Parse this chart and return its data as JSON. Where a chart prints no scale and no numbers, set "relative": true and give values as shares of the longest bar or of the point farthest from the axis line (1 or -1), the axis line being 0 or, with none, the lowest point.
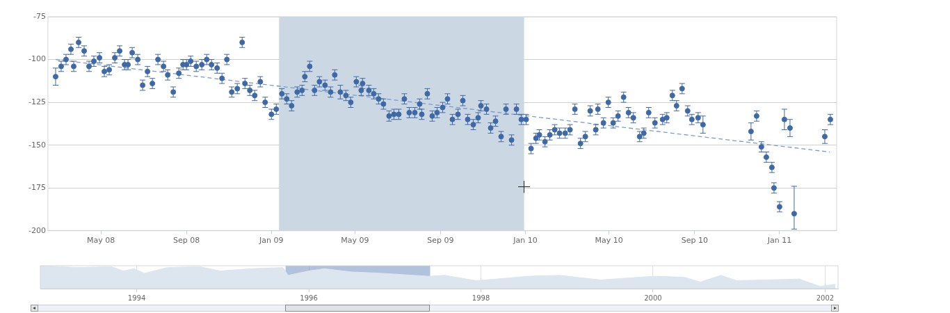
{
  "chart_data": [
    {
      "type": "scatter",
      "marker": "circle",
      "grid": "y",
      "xlim": [
        "2008-02-15",
        "2011-03-24"
      ],
      "xticks": [
        {
          "value": "2008-05-01",
          "label": "May 08"
        },
        {
          "value": "2008-09-01",
          "label": "Sep 08"
        },
        {
          "value": "2009-01-01",
          "label": "Jan 09"
        },
        {
          "value": "2009-05-01",
          "label": "May 09"
        },
        {
          "value": "2009-09-01",
          "label": "Sep 09"
        },
        {
          "value": "2010-01-01",
          "label": "Jan 10"
        },
        {
          "value": "2010-05-01",
          "label": "May 10"
        },
        {
          "value": "2010-09-01",
          "label": "Sep 10"
        },
        {
          "value": "2011-01-01",
          "label": "Jan 11"
        }
      ],
      "ylim": [
        -200,
        -75
      ],
      "yticks": [
        -200,
        -175,
        -150,
        -125,
        -100,
        -75
      ],
      "bands": [
        {
          "axis": "x",
          "from": "2009-01-12",
          "to": "2009-12-30",
          "color": "#cbd7e3"
        }
      ],
      "x": [
        "2008-02-26",
        "2008-03-05",
        "2008-03-12",
        "2008-03-19",
        "2008-03-23",
        "2008-03-30",
        "2008-04-07",
        "2008-04-14",
        "2008-04-21",
        "2008-04-29",
        "2008-05-06",
        "2008-05-13",
        "2008-05-21",
        "2008-05-28",
        "2008-06-04",
        "2008-06-09",
        "2008-06-15",
        "2008-06-23",
        "2008-06-30",
        "2008-07-07",
        "2008-07-14",
        "2008-07-22",
        "2008-07-30",
        "2008-08-05",
        "2008-08-13",
        "2008-08-21",
        "2008-08-27",
        "2008-09-01",
        "2008-09-07",
        "2008-09-15",
        "2008-09-23",
        "2008-09-30",
        "2008-10-07",
        "2008-10-15",
        "2008-10-22",
        "2008-10-29",
        "2008-11-05",
        "2008-11-13",
        "2008-11-20",
        "2008-11-24",
        "2008-12-01",
        "2008-12-08",
        "2008-12-16",
        "2008-12-23",
        "2009-01-01",
        "2009-01-08",
        "2009-01-16",
        "2009-01-23",
        "2009-01-30",
        "2009-02-07",
        "2009-02-14",
        "2009-02-18",
        "2009-02-25",
        "2009-03-04",
        "2009-03-11",
        "2009-03-19",
        "2009-03-27",
        "2009-04-02",
        "2009-04-10",
        "2009-04-18",
        "2009-04-25",
        "2009-05-03",
        "2009-05-10",
        "2009-05-12",
        "2009-05-21",
        "2009-05-28",
        "2009-06-04",
        "2009-06-11",
        "2009-06-19",
        "2009-06-26",
        "2009-07-03",
        "2009-07-11",
        "2009-07-18",
        "2009-07-26",
        "2009-08-02",
        "2009-08-05",
        "2009-08-13",
        "2009-08-20",
        "2009-08-27",
        "2009-09-04",
        "2009-09-11",
        "2009-09-18",
        "2009-09-26",
        "2009-10-03",
        "2009-10-10",
        "2009-10-18",
        "2009-10-25",
        "2009-10-29",
        "2009-11-06",
        "2009-11-12",
        "2009-11-19",
        "2009-11-27",
        "2009-12-04",
        "2009-12-12",
        "2009-12-19",
        "2009-12-26",
        "2010-01-02",
        "2010-01-09",
        "2010-01-16",
        "2010-01-21",
        "2010-01-29",
        "2010-02-05",
        "2010-02-12",
        "2010-02-19",
        "2010-02-27",
        "2010-03-06",
        "2010-03-13",
        "2010-03-21",
        "2010-03-28",
        "2010-04-04",
        "2010-04-12",
        "2010-04-15",
        "2010-04-23",
        "2010-04-30",
        "2010-05-07",
        "2010-05-14",
        "2010-05-22",
        "2010-05-29",
        "2010-06-05",
        "2010-06-14",
        "2010-06-20",
        "2010-06-27",
        "2010-07-06",
        "2010-07-17",
        "2010-07-23",
        "2010-07-31",
        "2010-08-06",
        "2010-08-14",
        "2010-08-22",
        "2010-08-28",
        "2010-09-06",
        "2010-09-13",
        "2010-11-21",
        "2010-11-29",
        "2010-12-06",
        "2010-12-13",
        "2010-12-21",
        "2010-12-24",
        "2011-01-01",
        "2011-01-08",
        "2011-01-16",
        "2011-01-22",
        "2011-03-07",
        "2011-03-15"
      ],
      "series": [
        {
          "type": "scatter",
          "color": "#3f69a6",
          "values": [
            -110,
            -104,
            -100,
            -94,
            -104,
            -90,
            -95,
            -104,
            -101,
            -99,
            -107,
            -106,
            -99,
            -95,
            -103,
            -103,
            -96,
            -100,
            -115,
            -107,
            -114,
            -100,
            -104,
            -109,
            -119,
            -108,
            -103,
            -103,
            -101,
            -104,
            -103,
            -100,
            -103,
            -105,
            -111,
            -100,
            -119,
            -117,
            -90,
            -114,
            -118,
            -121,
            -113,
            -125,
            -132,
            -129,
            -120,
            -123,
            -127,
            -119,
            -118,
            -110,
            -104,
            -118,
            -113,
            -115,
            -119,
            -109,
            -119,
            -121,
            -125,
            -113,
            -118,
            -114,
            -118,
            -120,
            -123,
            -126,
            -133,
            -132,
            -132,
            -123,
            -131,
            -131,
            -126,
            -132,
            -120,
            -133,
            -131,
            -128,
            -123,
            -135,
            -132,
            -124,
            -135,
            -138,
            -134,
            -127,
            -129,
            -140,
            -136,
            -145,
            -129,
            -147,
            -129,
            -135,
            -135,
            -152,
            -146,
            -144,
            -148,
            -144,
            -141,
            -143,
            -143,
            -141,
            -129,
            -149,
            -145,
            -130,
            -141,
            -129,
            -137,
            -125,
            -137,
            -133,
            -122,
            -131,
            -134,
            -145,
            -143,
            -131,
            -137,
            -135,
            -134,
            -121,
            -127,
            -117,
            -130,
            -135,
            -134,
            -138,
            -142,
            -133,
            -151,
            -157,
            -163,
            -175,
            -186,
            -135,
            -140,
            -190,
            -145,
            -135
          ],
          "errors": [
            5,
            3,
            3,
            3,
            3,
            3,
            3,
            3,
            3,
            3,
            3,
            3,
            3,
            3,
            3,
            3,
            3,
            3,
            3,
            3,
            3,
            3,
            3,
            3,
            3,
            3,
            3,
            3,
            3,
            3,
            3,
            3,
            3,
            3,
            3,
            3,
            3,
            3,
            3,
            3,
            3,
            3,
            3,
            3,
            3,
            3,
            3,
            3,
            3,
            3,
            3,
            3,
            3,
            3,
            3,
            3,
            3,
            3,
            4,
            3,
            3,
            3,
            3,
            3,
            3,
            3,
            3,
            3,
            3,
            3,
            3,
            3,
            3,
            3,
            3,
            3,
            3,
            3,
            3,
            3,
            3,
            3,
            3,
            3,
            3,
            3,
            3,
            3,
            3,
            3,
            3,
            3,
            3,
            3,
            3,
            3,
            3,
            3,
            3,
            3,
            3,
            3,
            3,
            3,
            3,
            3,
            3,
            3,
            3,
            3,
            3,
            3,
            3,
            3,
            3,
            3,
            3,
            3,
            3,
            3,
            3,
            3,
            3,
            3,
            3,
            3,
            3,
            3,
            3,
            3,
            3,
            5,
            5,
            3,
            3,
            3,
            3,
            3,
            3,
            6,
            5,
            [
              -199,
              -174
            ],
            4,
            3
          ]
        },
        {
          "type": "line",
          "color": "#7a9ccc",
          "line_style": "dashed",
          "marker": "none",
          "x": [
            "2008-02-26",
            "2011-03-14"
          ],
          "values": [
            -100,
            -154
          ]
        }
      ]
    },
    {
      "type": "area",
      "relative": true,
      "grid": "x",
      "color": "#dde5ef",
      "xlim": [
        1992.88,
        2002.15
      ],
      "xticks": [
        1994,
        1996,
        1998,
        2000,
        2002
      ],
      "bands": [
        {
          "axis": "x",
          "from": 1995.73,
          "to": 1997.41,
          "color": "#6f8fc0"
        }
      ],
      "x": [
        1992.88,
        1993.33,
        1993.7,
        1993.85,
        1993.97,
        1994.09,
        1994.36,
        1994.73,
        1994.97,
        1995.33,
        1995.7,
        1995.76,
        1996.0,
        1996.18,
        1996.49,
        1996.85,
        1997.4,
        1997.58,
        1997.94,
        1998.18,
        1998.55,
        1998.91,
        1999.39,
        2000.0,
        2000.36,
        2000.55,
        2000.79,
        2000.97,
        2001.33,
        2001.7,
        2001.94,
        2002.12
      ],
      "values": [
        1.0,
        0.92,
        0.96,
        0.77,
        0.87,
        0.67,
        0.92,
        0.96,
        0.77,
        0.87,
        0.92,
        0.58,
        0.77,
        0.87,
        0.73,
        0.67,
        0.54,
        0.58,
        0.35,
        0.42,
        0.54,
        0.58,
        0.38,
        0.54,
        0.5,
        0.29,
        0.58,
        0.35,
        0.38,
        0.42,
        0.1,
        0.19
      ]
    }
  ]
}
